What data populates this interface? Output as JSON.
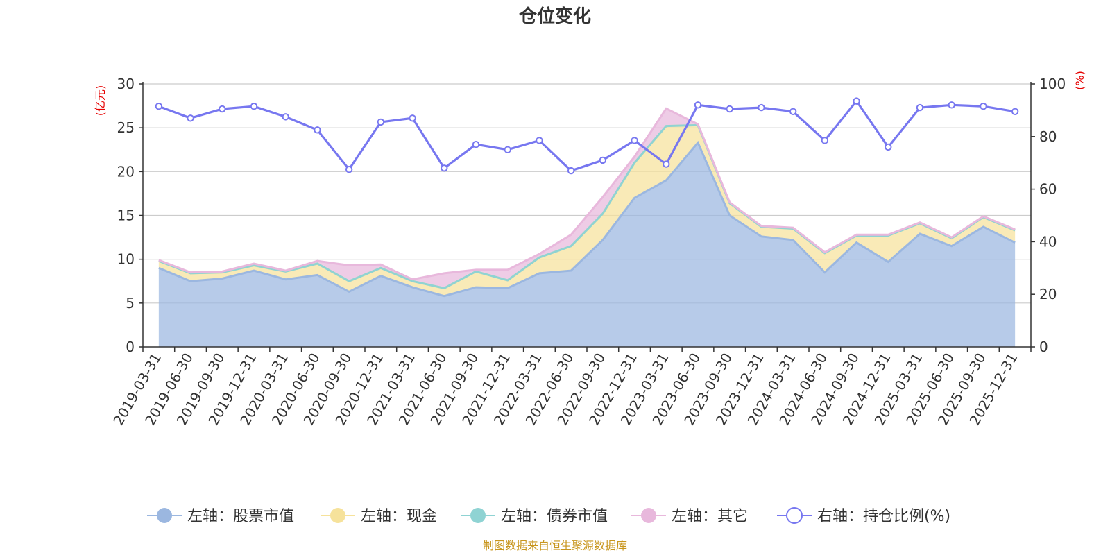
{
  "colors": {
    "stock": "#9bb7e0",
    "cash": "#f6e29b",
    "bond": "#8fd3d3",
    "other": "#e8b8dc",
    "ratio": "#7777f0",
    "axis_unit": "#e60000",
    "source": "#c8961e"
  },
  "chart_data": {
    "type": "area",
    "title": "仓位变化",
    "left_axis": {
      "unit": "(亿元)",
      "ylim": [
        0,
        30
      ],
      "ticks": [
        "0",
        "5",
        "10",
        "15",
        "20",
        "25",
        "30"
      ]
    },
    "right_axis": {
      "unit": "(%)",
      "ylim": [
        0,
        100
      ],
      "ticks": [
        "0",
        "20",
        "40",
        "60",
        "80",
        "100"
      ]
    },
    "categories": [
      "2019-03-31",
      "2019-06-30",
      "2019-09-30",
      "2019-12-31",
      "2020-03-31",
      "2020-06-30",
      "2020-09-30",
      "2020-12-31",
      "2021-03-31",
      "2021-06-30",
      "2021-09-30",
      "2021-12-31",
      "2022-03-31",
      "2022-06-30",
      "2022-09-30",
      "2022-12-31",
      "2023-03-31",
      "2023-06-30",
      "2023-09-30",
      "2023-12-31",
      "2024-03-31",
      "2024-06-30",
      "2024-09-30",
      "2024-12-31",
      "2025-03-31",
      "2025-06-30",
      "2025-09-30",
      "2025-12-31"
    ],
    "series": [
      {
        "name": "左轴：股票市值",
        "axis": "left",
        "stack": true,
        "values": [
          9.0,
          7.5,
          7.8,
          8.7,
          7.7,
          8.2,
          6.3,
          8.1,
          6.8,
          5.8,
          6.8,
          6.7,
          8.4,
          8.7,
          12.2,
          17.0,
          19.0,
          23.3,
          15.0,
          12.6,
          12.2,
          8.5,
          11.9,
          9.7,
          12.9,
          11.5,
          13.7,
          11.9
        ]
      },
      {
        "name": "左轴：现金",
        "axis": "left",
        "stack": true,
        "values": [
          0.8,
          0.9,
          0.7,
          0.6,
          0.9,
          1.3,
          1.2,
          0.9,
          0.7,
          0.9,
          1.8,
          0.9,
          1.8,
          2.8,
          3.0,
          4.0,
          6.2,
          2.0,
          1.4,
          1.1,
          1.3,
          2.2,
          0.8,
          3.0,
          1.2,
          0.9,
          1.1,
          1.4
        ]
      },
      {
        "name": "左轴：债券市值",
        "axis": "left",
        "stack": true,
        "values": [
          0,
          0,
          0,
          0,
          0,
          0,
          0,
          0,
          0,
          0,
          0,
          0,
          0,
          0,
          0,
          0,
          0,
          0,
          0,
          0,
          0,
          0,
          0,
          0,
          0,
          0,
          0,
          0
        ]
      },
      {
        "name": "左轴：其它",
        "axis": "left",
        "stack": true,
        "values": [
          0.1,
          0.1,
          0.1,
          0.2,
          0.1,
          0.3,
          1.8,
          0.4,
          0.2,
          1.7,
          0.2,
          1.2,
          0.4,
          1.3,
          1.9,
          0.7,
          2.0,
          0.1,
          0.1,
          0.1,
          0.1,
          0.1,
          0.1,
          0.1,
          0.1,
          0.1,
          0.1,
          0.1
        ]
      },
      {
        "name": "右轴：持仓比例(%)",
        "axis": "right",
        "type": "line",
        "values": [
          91.5,
          87.0,
          90.5,
          91.5,
          87.5,
          82.5,
          67.5,
          85.5,
          87.0,
          68.0,
          77.0,
          75.0,
          78.5,
          67.0,
          71.0,
          78.5,
          69.5,
          92.0,
          90.5,
          91.0,
          89.5,
          78.5,
          93.5,
          76.0,
          91.0,
          92.0,
          91.5,
          89.5
        ]
      }
    ],
    "grid": true,
    "legend": "bottom-center"
  },
  "legend_labels": [
    "左轴：股票市值",
    "左轴：现金",
    "左轴：债券市值",
    "左轴：其它",
    "右轴：持仓比例(%)"
  ],
  "source_text": "制图数据来自恒生聚源数据库"
}
